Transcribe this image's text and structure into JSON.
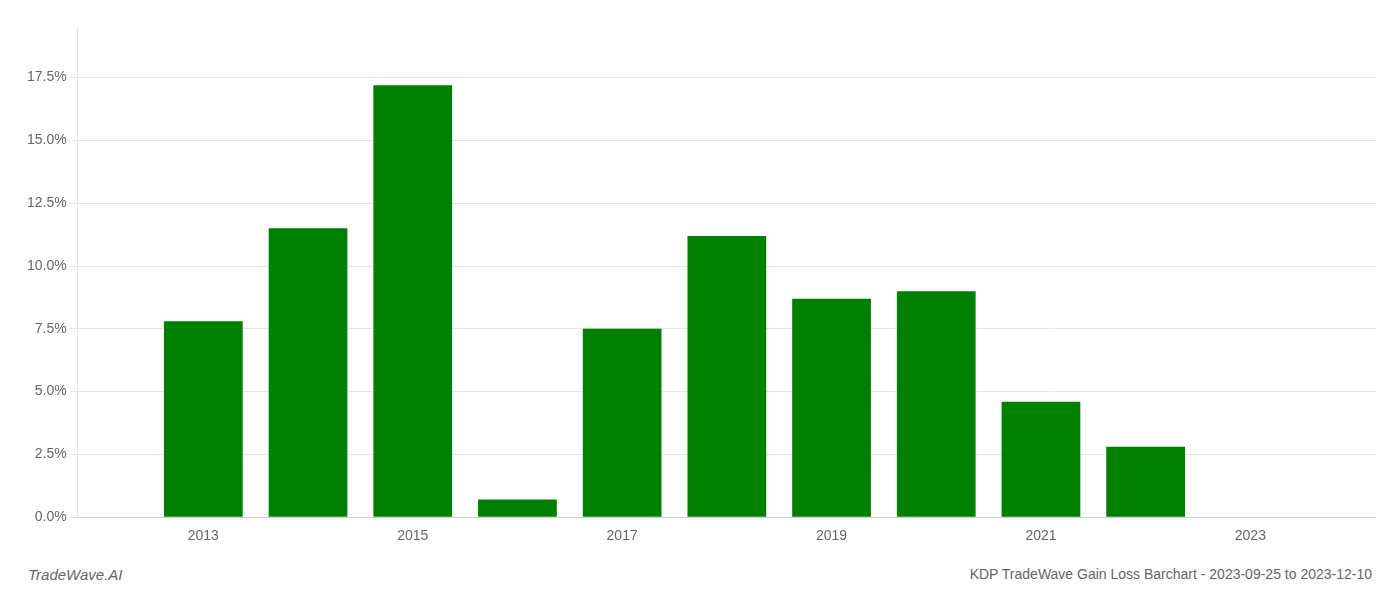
{
  "chart_data": {
    "type": "bar",
    "x": [
      2013,
      2014,
      2015,
      2016,
      2017,
      2018,
      2019,
      2020,
      2021,
      2022,
      2023
    ],
    "values": [
      0.078,
      0.115,
      0.172,
      0.007,
      0.075,
      0.112,
      0.087,
      0.09,
      0.046,
      0.028,
      0.0
    ],
    "color": "#008000",
    "xlim": [
      2011.8,
      2024.2
    ],
    "xticks": [
      2013,
      2015,
      2017,
      2019,
      2021,
      2023
    ],
    "ylim": [
      0,
      0.195
    ],
    "yticks": [
      {
        "value": 0.0,
        "label": "0.0%"
      },
      {
        "value": 0.025,
        "label": "2.5%"
      },
      {
        "value": 0.05,
        "label": "5.0%"
      },
      {
        "value": 0.075,
        "label": "7.5%"
      },
      {
        "value": 0.1,
        "label": "10.0%"
      },
      {
        "value": 0.125,
        "label": "12.5%"
      },
      {
        "value": 0.15,
        "label": "15.0%"
      },
      {
        "value": 0.175,
        "label": "17.5%"
      }
    ],
    "grid": true,
    "annotations": [
      "TradeWave.AI",
      "KDP TradeWave Gain Loss Barchart - 2023-09-25 to 2023-12-10"
    ]
  }
}
